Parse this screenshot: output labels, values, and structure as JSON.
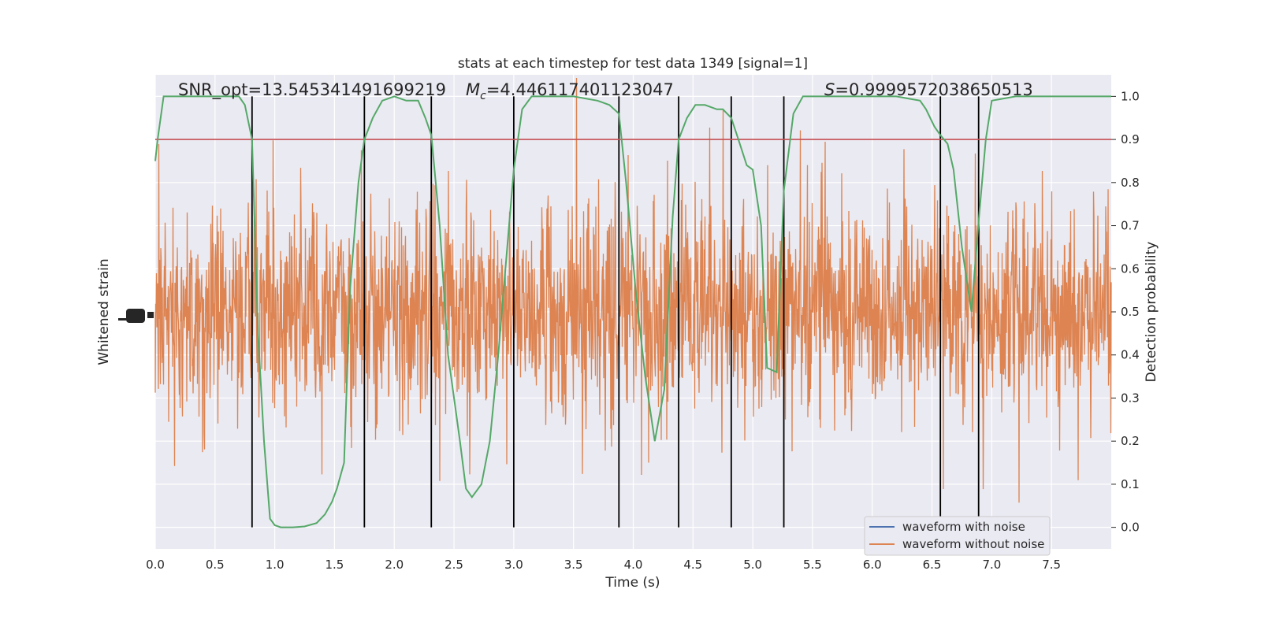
{
  "chart_data": {
    "type": "line",
    "title": "stats at each timestep for test data 1349 [signal=1]",
    "xlabel": "Time (s)",
    "ylabel_left": "Whitened strain",
    "ylabel_right": "Detection probability",
    "xlim": [
      0.0,
      8.0
    ],
    "ylim_right": [
      -0.05,
      1.05
    ],
    "x_ticks": [
      "0.0",
      "0.5",
      "1.0",
      "1.5",
      "2.0",
      "2.5",
      "3.0",
      "3.5",
      "4.0",
      "4.5",
      "5.0",
      "5.5",
      "6.0",
      "6.5",
      "7.0",
      "7.5"
    ],
    "y_ticks_right": [
      "0.0",
      "0.1",
      "0.2",
      "0.3",
      "0.4",
      "0.5",
      "0.6",
      "0.7",
      "0.8",
      "0.9",
      "1.0"
    ],
    "grid": true,
    "legend_position": "bottom-right",
    "annotations": {
      "snr": "SNR_opt=13.545341491699219",
      "mc_symbol": "M",
      "mc_sub": "c",
      "mc_value": "=4.446117401123047",
      "s_symbol": "S",
      "s_value": "=0.9999572038650513"
    },
    "threshold": 0.9,
    "vlines_x": [
      0.81,
      1.75,
      2.31,
      3.0,
      3.88,
      4.38,
      4.82,
      5.26,
      6.57,
      6.89
    ],
    "series": [
      {
        "name": "waveform with noise",
        "color": "#4c72b0"
      },
      {
        "name": "waveform without noise",
        "color": "#dd8452"
      }
    ],
    "detection_probability": {
      "color": "#55a868",
      "x": [
        0.0,
        0.02,
        0.07,
        0.15,
        0.3,
        0.5,
        0.7,
        0.75,
        0.81,
        0.86,
        0.91,
        0.96,
        1.0,
        1.05,
        1.15,
        1.25,
        1.35,
        1.42,
        1.48,
        1.52,
        1.58,
        1.63,
        1.7,
        1.75,
        1.82,
        1.9,
        2.0,
        2.1,
        2.2,
        2.26,
        2.31,
        2.38,
        2.45,
        2.5,
        2.55,
        2.6,
        2.65,
        2.73,
        2.8,
        2.87,
        2.93,
        3.0,
        3.07,
        3.15,
        3.3,
        3.5,
        3.7,
        3.8,
        3.88,
        3.94,
        4.02,
        4.1,
        4.18,
        4.26,
        4.33,
        4.38,
        4.45,
        4.52,
        4.6,
        4.7,
        4.75,
        4.82,
        4.88,
        4.95,
        5.0,
        5.07,
        5.12,
        5.2,
        5.26,
        5.34,
        5.42,
        5.5,
        5.8,
        6.2,
        6.4,
        6.45,
        6.52,
        6.57,
        6.63,
        6.68,
        6.75,
        6.83,
        6.89,
        6.95,
        7.0,
        7.2,
        7.5,
        8.0
      ],
      "y": [
        0.85,
        0.9,
        1.0,
        1.0,
        1.0,
        1.0,
        1.0,
        0.98,
        0.9,
        0.45,
        0.2,
        0.02,
        0.005,
        0.0,
        0.0,
        0.002,
        0.01,
        0.03,
        0.06,
        0.09,
        0.15,
        0.55,
        0.8,
        0.9,
        0.95,
        0.99,
        1.0,
        0.99,
        0.99,
        0.95,
        0.91,
        0.7,
        0.4,
        0.3,
        0.2,
        0.09,
        0.07,
        0.1,
        0.2,
        0.4,
        0.6,
        0.83,
        0.97,
        1.0,
        1.0,
        1.0,
        0.99,
        0.98,
        0.96,
        0.8,
        0.55,
        0.35,
        0.2,
        0.32,
        0.72,
        0.9,
        0.95,
        0.98,
        0.98,
        0.97,
        0.97,
        0.95,
        0.9,
        0.84,
        0.83,
        0.7,
        0.37,
        0.36,
        0.78,
        0.96,
        1.0,
        1.0,
        1.0,
        1.0,
        0.99,
        0.97,
        0.93,
        0.91,
        0.89,
        0.83,
        0.65,
        0.5,
        0.71,
        0.9,
        0.99,
        1.0,
        1.0,
        1.0
      ]
    }
  }
}
